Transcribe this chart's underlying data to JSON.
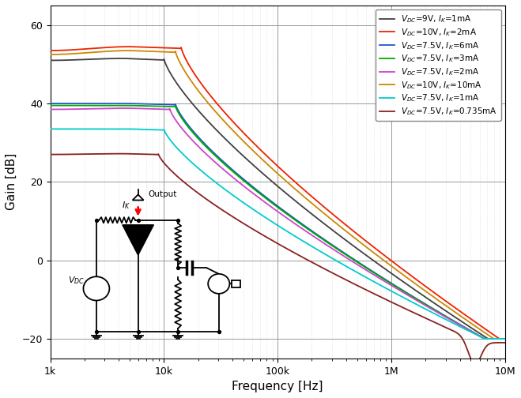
{
  "xlabel": "Frequency [Hz]",
  "ylabel": "Gain [dB]",
  "ylim": [
    -25,
    65
  ],
  "yticks": [
    -20,
    0,
    20,
    40,
    60
  ],
  "background": "#ffffff",
  "series": [
    {
      "label": "$V_{DC}$=9V, $I_K$=1mA",
      "color": "#404040",
      "y1k": 51.0,
      "ypeak": 51.5,
      "lpeak": 3.65,
      "lrs": 4.0,
      "lre": 6.85,
      "yend": -20.0,
      "notch": false
    },
    {
      "label": "$V_{DC}$=10V, $I_K$=2mA",
      "color": "#ee2200",
      "y1k": 53.5,
      "ypeak": 54.5,
      "lpeak": 3.7,
      "lrs": 4.15,
      "lre": 6.95,
      "yend": -20.0,
      "notch": false
    },
    {
      "label": "$V_{DC}$=7.5V, $I_K$=6mA",
      "color": "#2255cc",
      "y1k": 40.0,
      "ypeak": 40.0,
      "lpeak": 3.7,
      "lrs": 4.1,
      "lre": 6.82,
      "yend": -20.0,
      "notch": false
    },
    {
      "label": "$V_{DC}$=7.5V, $I_K$=3mA",
      "color": "#00aa00",
      "y1k": 39.5,
      "ypeak": 39.5,
      "lpeak": 3.7,
      "lrs": 4.1,
      "lre": 6.82,
      "yend": -20.0,
      "notch": false
    },
    {
      "label": "$V_{DC}$=7.5V, $I_K$=2mA",
      "color": "#cc44cc",
      "y1k": 38.5,
      "ypeak": 38.8,
      "lpeak": 3.7,
      "lrs": 4.05,
      "lre": 6.82,
      "yend": -20.0,
      "notch": false
    },
    {
      "label": "$V_{DC}$=10V, $I_K$=10mA",
      "color": "#cc8800",
      "y1k": 52.5,
      "ypeak": 53.5,
      "lpeak": 3.7,
      "lrs": 4.1,
      "lre": 6.9,
      "yend": -20.0,
      "notch": false
    },
    {
      "label": "$V_{DC}$=7.5V, $I_K$=1mA",
      "color": "#00cccc",
      "y1k": 33.5,
      "ypeak": 33.5,
      "lpeak": 3.7,
      "lrs": 4.0,
      "lre": 6.82,
      "yend": -20.0,
      "notch": false
    },
    {
      "label": "$V_{DC}$=7.5V, $I_K$=0.735mA",
      "color": "#882222",
      "y1k": 27.0,
      "ypeak": 27.2,
      "lpeak": 3.65,
      "lrs": 3.95,
      "lre": 6.78,
      "yend": -21.0,
      "notch": true,
      "nfc": 6.73,
      "nfw": 0.055,
      "nfd": 6.0
    }
  ],
  "legend_fs": 7.5,
  "tick_fs": 9,
  "axis_fs": 11
}
